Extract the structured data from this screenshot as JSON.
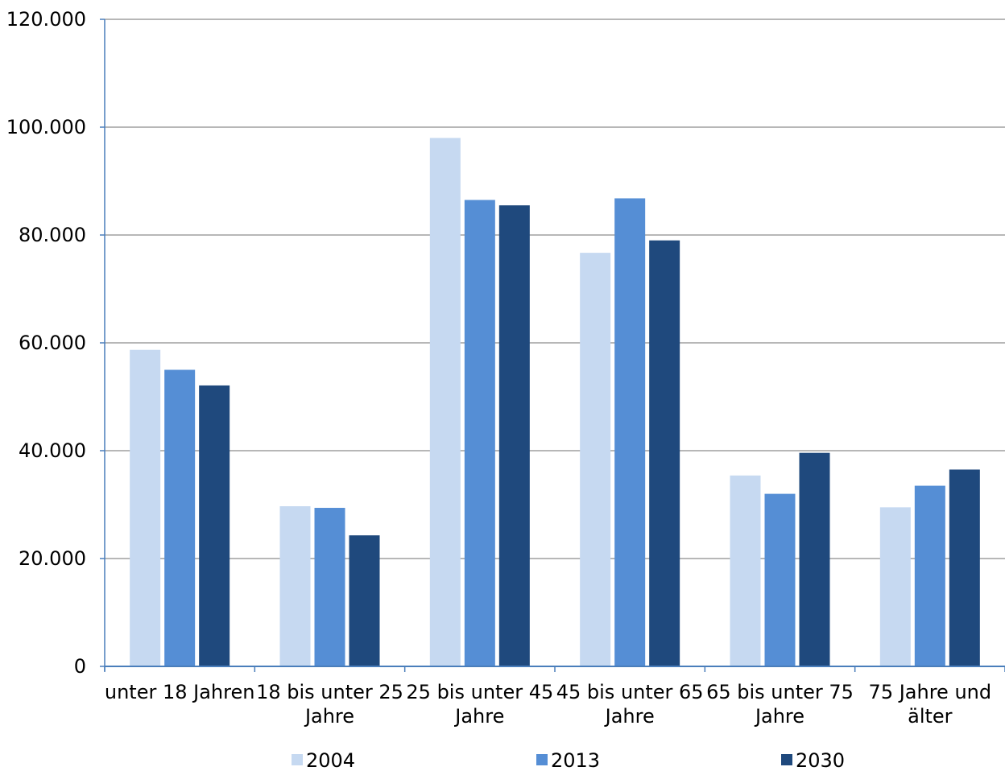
{
  "chart_data": {
    "type": "bar",
    "categories": [
      [
        "unter 18 Jahren"
      ],
      [
        "18 bis unter 25",
        "Jahre"
      ],
      [
        "25 bis unter 45",
        "Jahre"
      ],
      [
        "45 bis unter 65",
        "Jahre"
      ],
      [
        "65 bis unter 75",
        "Jahre"
      ],
      [
        "75 Jahre und",
        "älter"
      ]
    ],
    "series": [
      {
        "name": "2004",
        "color": "#c6d9f1",
        "values": [
          58700,
          29700,
          98000,
          76700,
          35400,
          29500
        ]
      },
      {
        "name": "2013",
        "color": "#558ed5",
        "values": [
          55000,
          29400,
          86500,
          86800,
          32000,
          33500
        ]
      },
      {
        "name": "2030",
        "color": "#1f497d",
        "values": [
          52100,
          24300,
          85500,
          79000,
          39600,
          36500
        ]
      }
    ],
    "ylim": [
      0,
      120000
    ],
    "yticks": [
      0,
      20000,
      40000,
      60000,
      80000,
      100000,
      120000
    ],
    "ytick_labels": [
      "0",
      "20.000",
      "40.000",
      "60.000",
      "80.000",
      "100.000",
      "120.000"
    ],
    "grid": true,
    "legend_position": "bottom"
  }
}
